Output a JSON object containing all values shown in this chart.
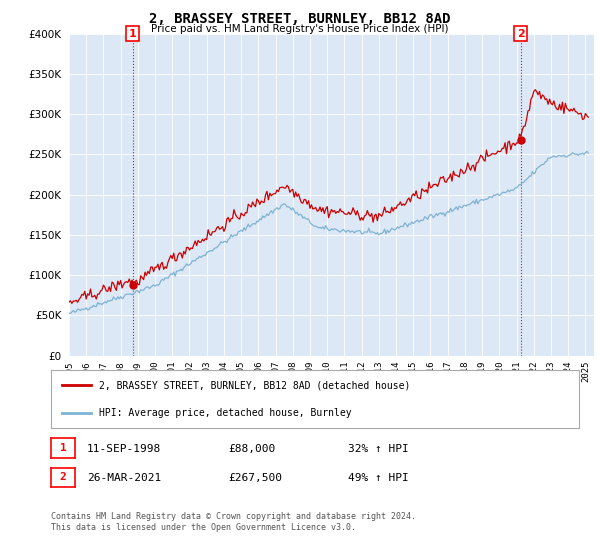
{
  "title": "2, BRASSEY STREET, BURNLEY, BB12 8AD",
  "subtitle": "Price paid vs. HM Land Registry's House Price Index (HPI)",
  "ylim": [
    0,
    400000
  ],
  "yticks": [
    0,
    50000,
    100000,
    150000,
    200000,
    250000,
    300000,
    350000,
    400000
  ],
  "point1": {
    "date_num": 1998.69,
    "price": 88000,
    "label": "1",
    "date_str": "11-SEP-1998",
    "price_str": "£88,000",
    "pct": "32% ↑ HPI"
  },
  "point2": {
    "date_num": 2021.23,
    "price": 267500,
    "label": "2",
    "date_str": "26-MAR-2021",
    "price_str": "£267,500",
    "pct": "49% ↑ HPI"
  },
  "line_color_red": "#cc0000",
  "line_color_blue": "#7fb3d3",
  "vline_color": "#cc0000",
  "chart_bg": "#dce8f5",
  "legend_line1": "2, BRASSEY STREET, BURNLEY, BB12 8AD (detached house)",
  "legend_line2": "HPI: Average price, detached house, Burnley",
  "footnote": "Contains HM Land Registry data © Crown copyright and database right 2024.\nThis data is licensed under the Open Government Licence v3.0.",
  "xlim": [
    1995.0,
    2025.5
  ],
  "xtick_years": [
    1995,
    1996,
    1997,
    1998,
    1999,
    2000,
    2001,
    2002,
    2003,
    2004,
    2005,
    2006,
    2007,
    2008,
    2009,
    2010,
    2011,
    2012,
    2013,
    2014,
    2015,
    2016,
    2017,
    2018,
    2019,
    2020,
    2021,
    2022,
    2023,
    2024,
    2025
  ]
}
